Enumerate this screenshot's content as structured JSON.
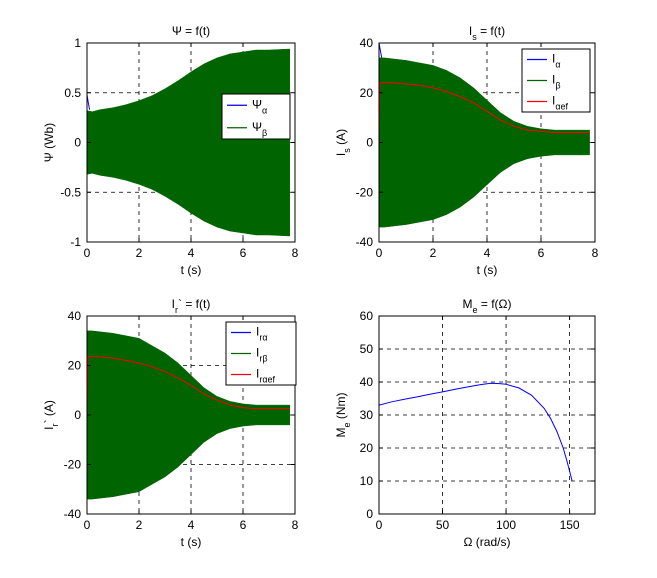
{
  "chart_data": [
    {
      "type": "area",
      "title": "Ψ = f(t)",
      "xlabel": "t (s)",
      "ylabel": "Ψ (Wb)",
      "xlim": [
        0,
        8
      ],
      "ylim": [
        -1,
        1
      ],
      "xticks": [
        0,
        2,
        4,
        6,
        8
      ],
      "xtick_labels": [
        "0",
        "2",
        "4",
        "6",
        "8"
      ],
      "yticks": [
        -1,
        -0.5,
        0,
        0.5,
        1
      ],
      "ytick_labels": [
        "-1",
        "-0.5",
        "0",
        "0.5",
        "1"
      ],
      "grid": true,
      "legend_position": "center-right",
      "series": [
        {
          "name": "Ψα",
          "color": "#0000ff",
          "kind": "line",
          "x": [
            0,
            0.05,
            0.1
          ],
          "y": [
            0.48,
            0.4,
            0.33
          ]
        },
        {
          "name": "Ψβ",
          "color": "#006400",
          "kind": "envelope",
          "x": [
            0,
            0.2,
            0.5,
            1,
            1.5,
            2,
            2.5,
            3,
            3.5,
            4,
            4.5,
            5,
            5.5,
            6,
            6.5,
            7,
            7.8
          ],
          "upper": [
            0.32,
            0.31,
            0.33,
            0.35,
            0.38,
            0.42,
            0.47,
            0.54,
            0.62,
            0.71,
            0.79,
            0.85,
            0.89,
            0.91,
            0.93,
            0.93,
            0.94
          ],
          "lower": [
            -0.32,
            -0.31,
            -0.33,
            -0.35,
            -0.38,
            -0.42,
            -0.47,
            -0.54,
            -0.62,
            -0.71,
            -0.79,
            -0.85,
            -0.89,
            -0.91,
            -0.93,
            -0.93,
            -0.94
          ]
        }
      ]
    },
    {
      "type": "area",
      "title": "Is = f(t)",
      "xlabel": "t (s)",
      "ylabel": "Is (A)",
      "xlim": [
        0,
        8
      ],
      "ylim": [
        -40,
        40
      ],
      "xticks": [
        0,
        2,
        4,
        6,
        8
      ],
      "xtick_labels": [
        "0",
        "2",
        "4",
        "6",
        "8"
      ],
      "yticks": [
        -40,
        -20,
        0,
        20,
        40
      ],
      "ytick_labels": [
        "-40",
        "-20",
        "0",
        "20",
        "40"
      ],
      "grid": true,
      "legend_position": "top-right",
      "series": [
        {
          "name": "Iα",
          "color": "#0000ff",
          "kind": "line",
          "x": [
            0,
            0.1
          ],
          "y": [
            40,
            34
          ]
        },
        {
          "name": "Iβ",
          "color": "#006400",
          "kind": "envelope",
          "x": [
            0,
            0.2,
            1,
            2,
            2.5,
            3,
            3.5,
            4,
            4.5,
            5,
            5.5,
            6,
            6.5,
            7,
            7.8
          ],
          "upper": [
            34,
            34,
            33,
            31,
            29,
            26,
            22,
            17,
            12,
            8.5,
            6.5,
            5.5,
            5,
            5,
            5
          ],
          "lower": [
            -34,
            -34,
            -33,
            -31,
            -29,
            -26,
            -22,
            -17,
            -12,
            -8.5,
            -6.5,
            -5.5,
            -5,
            -5,
            -5
          ]
        },
        {
          "name": "Iαef",
          "color": "#ff0000",
          "kind": "line",
          "x": [
            0,
            0.03,
            0.5,
            1,
            1.5,
            2,
            2.5,
            3,
            3.5,
            4,
            4.5,
            5,
            5.5,
            6,
            6.5,
            7,
            7.8
          ],
          "y": [
            0,
            24,
            24,
            23.5,
            23,
            22,
            20.5,
            18.5,
            16,
            12.5,
            9,
            6.5,
            5,
            4.5,
            4,
            4,
            4
          ]
        }
      ]
    },
    {
      "type": "area",
      "title": "Ir` = f(t)",
      "xlabel": "t (s)",
      "ylabel": "Ir` (A)",
      "xlim": [
        0,
        8
      ],
      "ylim": [
        -40,
        40
      ],
      "xticks": [
        0,
        2,
        4,
        6,
        8
      ],
      "xtick_labels": [
        "0",
        "2",
        "4",
        "6",
        "8"
      ],
      "yticks": [
        -40,
        -20,
        0,
        20,
        40
      ],
      "ytick_labels": [
        "-40",
        "-20",
        "0",
        "20",
        "40"
      ],
      "grid": true,
      "legend_position": "top-right",
      "series": [
        {
          "name": "Irα",
          "color": "#0000ff",
          "kind": "line",
          "x": [
            0,
            0.1
          ],
          "y": [
            34,
            33
          ]
        },
        {
          "name": "Irβ",
          "color": "#006400",
          "kind": "envelope",
          "x": [
            0,
            0.2,
            1,
            2,
            2.5,
            3,
            3.5,
            4,
            4.5,
            5,
            5.5,
            6,
            6.5,
            7,
            7.8
          ],
          "upper": [
            34,
            34,
            33,
            31,
            28,
            25,
            21,
            16,
            11,
            7.5,
            5.5,
            4.5,
            4,
            4,
            4
          ],
          "lower": [
            -34,
            -34,
            -33,
            -31,
            -28,
            -25,
            -21,
            -16,
            -11,
            -7.5,
            -5.5,
            -4.5,
            -4,
            -4,
            -4
          ]
        },
        {
          "name": "Irαef",
          "color": "#ff0000",
          "kind": "line",
          "x": [
            0,
            0.03,
            0.5,
            1,
            1.5,
            2,
            2.5,
            3,
            3.5,
            4,
            4.5,
            5,
            5.5,
            6,
            6.5,
            7,
            7.8
          ],
          "y": [
            0,
            23.5,
            23.5,
            23,
            22,
            21,
            19.5,
            17.5,
            15,
            12,
            8.5,
            6,
            4,
            3,
            2.5,
            2.5,
            2.5
          ]
        }
      ]
    },
    {
      "type": "line",
      "title": "Me = f(Ω)",
      "xlabel": "Ω (rad/s)",
      "ylabel": "Me (Nm)",
      "xlim": [
        0,
        170
      ],
      "ylim": [
        0,
        60
      ],
      "xticks": [
        0,
        50,
        100,
        150
      ],
      "xtick_labels": [
        "0",
        "50",
        "100",
        "150"
      ],
      "yticks": [
        0,
        10,
        20,
        30,
        40,
        50,
        60
      ],
      "ytick_labels": [
        "0",
        "10",
        "20",
        "30",
        "40",
        "50",
        "60"
      ],
      "grid": true,
      "series": [
        {
          "name": "",
          "color": "#0000ff",
          "kind": "line",
          "x": [
            0,
            0,
            0,
            10,
            20,
            30,
            40,
            50,
            60,
            70,
            80,
            88,
            95,
            100,
            110,
            120,
            130,
            135,
            140,
            145,
            148,
            150,
            152
          ],
          "y": [
            60,
            33,
            33,
            34,
            34.8,
            35.5,
            36.3,
            37,
            37.8,
            38.5,
            39.2,
            39.6,
            39.5,
            39.3,
            38.2,
            36,
            32,
            29,
            25,
            20,
            16,
            13,
            10
          ]
        }
      ]
    }
  ],
  "subscripts": {
    "panel1_title": [
      "Ψ = f(t)",
      "",
      ""
    ],
    "panel2_title": [
      "I",
      "s",
      " = f(t)"
    ],
    "panel3_title": [
      "I",
      "r",
      "` = f(t)"
    ],
    "panel4_title": [
      "M",
      "e",
      " = f(Ω)"
    ],
    "panel1_ylabel": [
      "Ψ (Wb)",
      "",
      ""
    ],
    "panel2_ylabel": [
      "I",
      "s",
      " (A)"
    ],
    "panel3_ylabel": [
      "I",
      "r",
      "` (A)"
    ],
    "panel4_ylabel": [
      "M",
      "e",
      " (Nm)"
    ],
    "panel1_legend": [
      [
        "Ψ",
        "α"
      ],
      [
        "Ψ",
        "β"
      ]
    ],
    "panel2_legend": [
      [
        "I",
        "α"
      ],
      [
        "I",
        "β"
      ],
      [
        "I",
        "αef"
      ]
    ],
    "panel3_legend": [
      [
        "I",
        "rα"
      ],
      [
        "I",
        "rβ"
      ],
      [
        "I",
        "rαef"
      ]
    ]
  }
}
